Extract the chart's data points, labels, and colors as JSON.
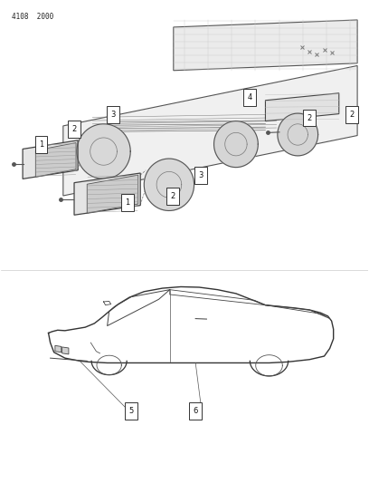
{
  "bg_color": "#ffffff",
  "page_ref": "4108  2000",
  "fig_width": 4.08,
  "fig_height": 5.33,
  "dpi": 100,
  "text_color": "#222222"
}
